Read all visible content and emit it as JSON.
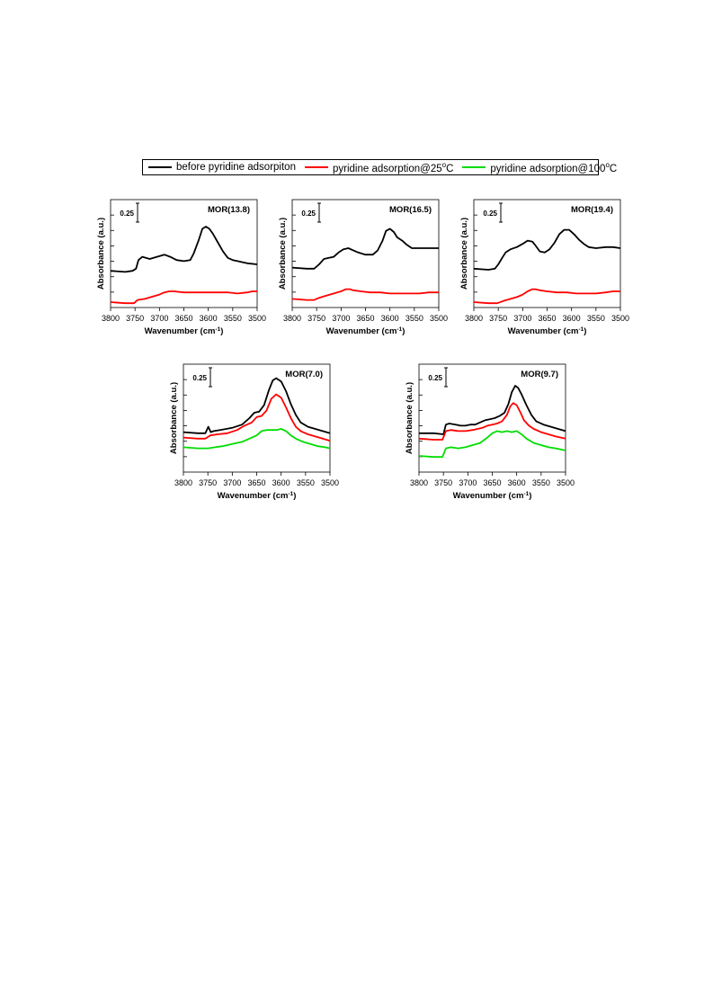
{
  "legend": {
    "items": [
      {
        "label": "before pyridine adsorpiton",
        "color": "#000000"
      },
      {
        "label_prefix": "pyridine adsorption@25",
        "label_sup": "o",
        "label_suffix": "C",
        "color": "#ff0000"
      },
      {
        "label_prefix": "pyridine adsorption@100",
        "label_sup": "o",
        "label_suffix": "C",
        "color": "#00dd00"
      }
    ]
  },
  "chart_data": [
    {
      "type": "line",
      "title": "MOR(13.8)",
      "xlabel": "Wavenumber (cm-1)",
      "ylabel": "Absorbance (a.u.)",
      "scale_bar_label": "0.25",
      "xlim": [
        3800,
        3500
      ],
      "x_ticks": [
        3800,
        3750,
        3700,
        3650,
        3600,
        3550,
        3500
      ],
      "ylim": [
        0,
        1
      ],
      "series": [
        {
          "color": "#000000",
          "x": [
            3800,
            3770,
            3755,
            3748,
            3743,
            3735,
            3720,
            3705,
            3690,
            3678,
            3665,
            3650,
            3637,
            3630,
            3620,
            3612,
            3605,
            3598,
            3590,
            3580,
            3570,
            3560,
            3550,
            3540,
            3530,
            3520,
            3500
          ],
          "y": [
            0.34,
            0.33,
            0.34,
            0.36,
            0.44,
            0.47,
            0.45,
            0.47,
            0.49,
            0.47,
            0.44,
            0.43,
            0.44,
            0.5,
            0.62,
            0.73,
            0.75,
            0.73,
            0.68,
            0.6,
            0.52,
            0.46,
            0.44,
            0.43,
            0.42,
            0.41,
            0.4
          ]
        },
        {
          "color": "#ff0000",
          "x": [
            3800,
            3770,
            3752,
            3745,
            3730,
            3715,
            3700,
            3690,
            3680,
            3670,
            3650,
            3620,
            3600,
            3580,
            3560,
            3540,
            3520,
            3510,
            3500
          ],
          "y": [
            0.05,
            0.04,
            0.04,
            0.07,
            0.08,
            0.1,
            0.12,
            0.14,
            0.15,
            0.15,
            0.14,
            0.14,
            0.14,
            0.14,
            0.14,
            0.13,
            0.14,
            0.15,
            0.15
          ]
        }
      ]
    },
    {
      "type": "line",
      "title": "MOR(16.5)",
      "xlabel": "Wavenumber (cm-1)",
      "ylabel": "Absorbance (a.u.)",
      "scale_bar_label": "0.25",
      "xlim": [
        3800,
        3500
      ],
      "x_ticks": [
        3800,
        3750,
        3700,
        3650,
        3600,
        3550,
        3500
      ],
      "ylim": [
        0,
        1
      ],
      "series": [
        {
          "color": "#000000",
          "x": [
            3800,
            3770,
            3755,
            3745,
            3735,
            3725,
            3715,
            3705,
            3695,
            3685,
            3675,
            3665,
            3650,
            3635,
            3625,
            3615,
            3608,
            3600,
            3592,
            3585,
            3575,
            3565,
            3555,
            3545,
            3530,
            3515,
            3500
          ],
          "y": [
            0.37,
            0.36,
            0.36,
            0.4,
            0.45,
            0.46,
            0.47,
            0.51,
            0.54,
            0.55,
            0.53,
            0.51,
            0.49,
            0.49,
            0.53,
            0.62,
            0.71,
            0.73,
            0.7,
            0.65,
            0.62,
            0.58,
            0.55,
            0.55,
            0.55,
            0.55,
            0.55
          ]
        },
        {
          "color": "#ff0000",
          "x": [
            3800,
            3770,
            3755,
            3745,
            3730,
            3715,
            3700,
            3690,
            3682,
            3675,
            3660,
            3640,
            3620,
            3600,
            3580,
            3560,
            3540,
            3520,
            3500
          ],
          "y": [
            0.08,
            0.07,
            0.07,
            0.09,
            0.11,
            0.13,
            0.15,
            0.17,
            0.17,
            0.16,
            0.15,
            0.14,
            0.14,
            0.13,
            0.13,
            0.13,
            0.13,
            0.14,
            0.14
          ]
        }
      ]
    },
    {
      "type": "line",
      "title": "MOR(19.4)",
      "xlabel": "Wavenumber (cm-1)",
      "ylabel": "Absorbance (a.u.)",
      "scale_bar_label": "0.25",
      "xlim": [
        3800,
        3500
      ],
      "x_ticks": [
        3800,
        3750,
        3700,
        3650,
        3600,
        3550,
        3500
      ],
      "ylim": [
        0,
        1
      ],
      "series": [
        {
          "color": "#000000",
          "x": [
            3800,
            3770,
            3757,
            3750,
            3742,
            3735,
            3725,
            3712,
            3700,
            3690,
            3680,
            3673,
            3665,
            3655,
            3645,
            3635,
            3625,
            3615,
            3605,
            3595,
            3585,
            3575,
            3565,
            3550,
            3530,
            3515,
            3500
          ],
          "y": [
            0.36,
            0.35,
            0.36,
            0.4,
            0.46,
            0.51,
            0.54,
            0.56,
            0.59,
            0.62,
            0.61,
            0.57,
            0.52,
            0.51,
            0.54,
            0.6,
            0.68,
            0.72,
            0.72,
            0.68,
            0.63,
            0.59,
            0.56,
            0.55,
            0.56,
            0.56,
            0.55
          ]
        },
        {
          "color": "#ff0000",
          "x": [
            3800,
            3770,
            3752,
            3740,
            3725,
            3710,
            3700,
            3690,
            3680,
            3675,
            3665,
            3650,
            3630,
            3610,
            3590,
            3570,
            3550,
            3530,
            3515,
            3500
          ],
          "y": [
            0.05,
            0.04,
            0.04,
            0.06,
            0.08,
            0.1,
            0.12,
            0.15,
            0.17,
            0.17,
            0.16,
            0.15,
            0.14,
            0.14,
            0.13,
            0.13,
            0.13,
            0.14,
            0.15,
            0.15
          ]
        }
      ]
    },
    {
      "type": "line",
      "title": "MOR(7.0)",
      "xlabel": "Wavenumber (cm-1)",
      "ylabel": "Absorbance (a.u.)",
      "scale_bar_label": "0.25",
      "xlim": [
        3800,
        3500
      ],
      "x_ticks": [
        3800,
        3750,
        3700,
        3650,
        3600,
        3550,
        3500
      ],
      "ylim": [
        0,
        1
      ],
      "series": [
        {
          "color": "#000000",
          "x": [
            3800,
            3770,
            3755,
            3749,
            3744,
            3738,
            3725,
            3700,
            3680,
            3665,
            3655,
            3645,
            3635,
            3625,
            3617,
            3610,
            3600,
            3590,
            3580,
            3570,
            3560,
            3545,
            3530,
            3515,
            3500
          ],
          "y": [
            0.37,
            0.36,
            0.36,
            0.42,
            0.37,
            0.38,
            0.39,
            0.41,
            0.44,
            0.5,
            0.55,
            0.56,
            0.62,
            0.76,
            0.85,
            0.87,
            0.84,
            0.75,
            0.63,
            0.53,
            0.46,
            0.42,
            0.4,
            0.38,
            0.36
          ]
        },
        {
          "color": "#ff0000",
          "x": [
            3800,
            3770,
            3755,
            3745,
            3730,
            3710,
            3690,
            3675,
            3660,
            3650,
            3640,
            3630,
            3620,
            3610,
            3600,
            3590,
            3580,
            3570,
            3560,
            3545,
            3530,
            3515,
            3500
          ],
          "y": [
            0.32,
            0.31,
            0.31,
            0.34,
            0.35,
            0.36,
            0.39,
            0.43,
            0.46,
            0.51,
            0.52,
            0.57,
            0.68,
            0.72,
            0.69,
            0.6,
            0.5,
            0.42,
            0.38,
            0.35,
            0.33,
            0.31,
            0.29
          ]
        },
        {
          "color": "#00dd00",
          "x": [
            3800,
            3770,
            3750,
            3735,
            3720,
            3700,
            3680,
            3665,
            3650,
            3640,
            3630,
            3620,
            3610,
            3600,
            3590,
            3580,
            3570,
            3555,
            3540,
            3525,
            3510,
            3500
          ],
          "y": [
            0.23,
            0.22,
            0.22,
            0.23,
            0.24,
            0.26,
            0.28,
            0.31,
            0.34,
            0.38,
            0.39,
            0.39,
            0.39,
            0.4,
            0.38,
            0.34,
            0.31,
            0.28,
            0.26,
            0.24,
            0.23,
            0.22
          ]
        }
      ]
    },
    {
      "type": "line",
      "title": "MOR(9.7)",
      "xlabel": "Wavenumber (cm-1)",
      "ylabel": "Absorbance (a.u.)",
      "scale_bar_label": "0.25",
      "xlim": [
        3800,
        3500
      ],
      "x_ticks": [
        3800,
        3750,
        3700,
        3650,
        3600,
        3550,
        3500
      ],
      "ylim": [
        0,
        1
      ],
      "series": [
        {
          "color": "#000000",
          "x": [
            3800,
            3770,
            3750,
            3745,
            3738,
            3725,
            3715,
            3705,
            3695,
            3685,
            3675,
            3665,
            3655,
            3645,
            3635,
            3625,
            3617,
            3610,
            3603,
            3597,
            3590,
            3580,
            3570,
            3560,
            3545,
            3530,
            3515,
            3500
          ],
          "y": [
            0.36,
            0.36,
            0.35,
            0.44,
            0.45,
            0.44,
            0.43,
            0.43,
            0.44,
            0.44,
            0.46,
            0.48,
            0.49,
            0.5,
            0.52,
            0.55,
            0.63,
            0.74,
            0.8,
            0.78,
            0.72,
            0.62,
            0.53,
            0.47,
            0.44,
            0.42,
            0.4,
            0.38
          ]
        },
        {
          "color": "#ff0000",
          "x": [
            3800,
            3770,
            3752,
            3745,
            3735,
            3720,
            3705,
            3690,
            3680,
            3670,
            3660,
            3650,
            3640,
            3630,
            3620,
            3613,
            3607,
            3600,
            3592,
            3585,
            3575,
            3565,
            3550,
            3535,
            3520,
            3500
          ],
          "y": [
            0.31,
            0.3,
            0.3,
            0.38,
            0.39,
            0.38,
            0.38,
            0.39,
            0.4,
            0.41,
            0.43,
            0.44,
            0.45,
            0.47,
            0.53,
            0.61,
            0.64,
            0.62,
            0.55,
            0.48,
            0.43,
            0.4,
            0.37,
            0.35,
            0.33,
            0.31
          ]
        },
        {
          "color": "#00dd00",
          "x": [
            3800,
            3770,
            3752,
            3745,
            3735,
            3720,
            3705,
            3690,
            3675,
            3660,
            3650,
            3640,
            3630,
            3620,
            3610,
            3600,
            3590,
            3580,
            3565,
            3550,
            3535,
            3520,
            3500
          ],
          "y": [
            0.15,
            0.14,
            0.14,
            0.22,
            0.23,
            0.22,
            0.23,
            0.25,
            0.27,
            0.32,
            0.36,
            0.38,
            0.37,
            0.38,
            0.37,
            0.38,
            0.35,
            0.31,
            0.27,
            0.25,
            0.23,
            0.22,
            0.2
          ]
        }
      ]
    }
  ]
}
